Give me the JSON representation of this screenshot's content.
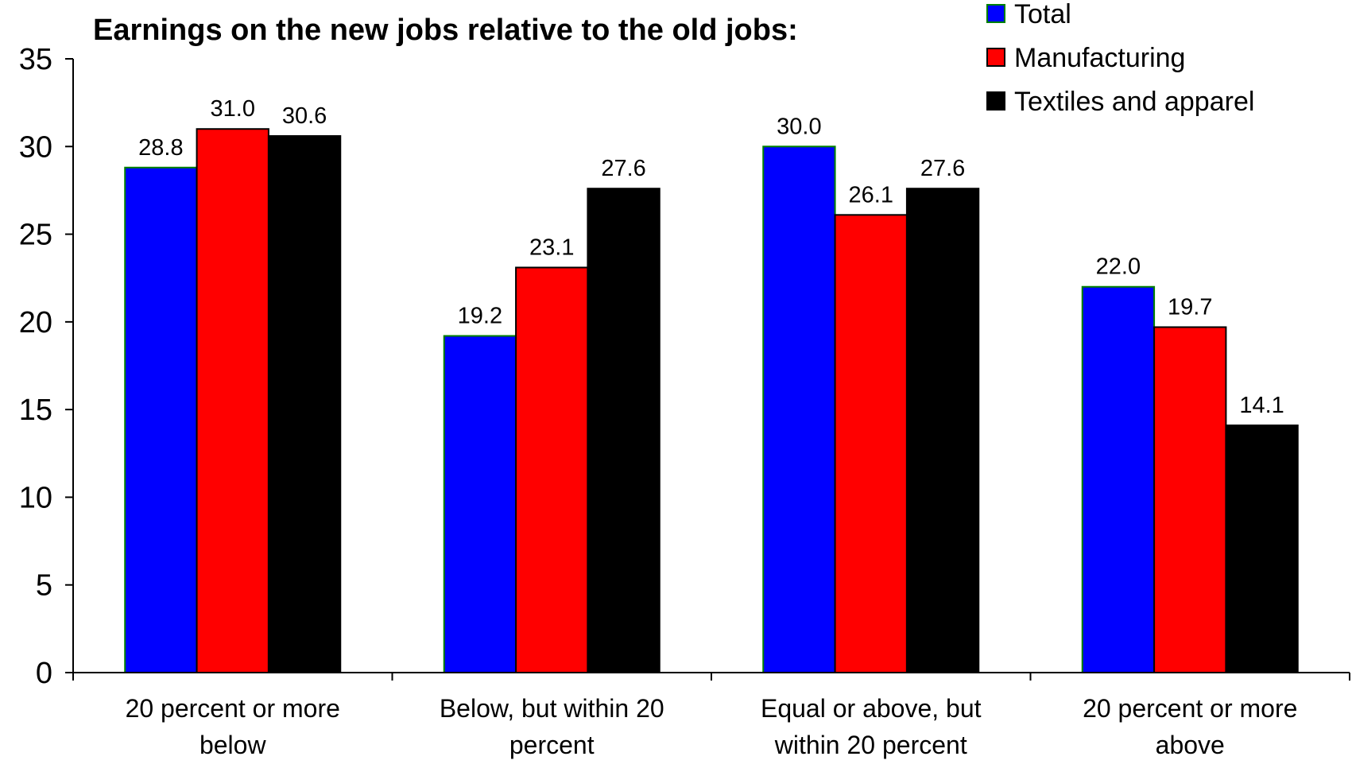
{
  "chart_data": {
    "type": "bar",
    "title": "Earnings on the new jobs relative to the old jobs:",
    "categories": [
      [
        "20 percent or more",
        "below"
      ],
      [
        "Below, but within 20",
        "percent"
      ],
      [
        "Equal or above, but",
        "within 20 percent"
      ],
      [
        "20 percent or more",
        "above"
      ]
    ],
    "series": [
      {
        "name": "Total",
        "color": "#0000ff",
        "values": [
          28.8,
          19.2,
          30.0,
          22.0
        ],
        "labels": [
          "28.8",
          "19.2",
          "30.0",
          "22.0"
        ]
      },
      {
        "name": "Manufacturing",
        "color": "#ff0000",
        "values": [
          31.0,
          23.1,
          26.1,
          19.7
        ],
        "labels": [
          "31.0",
          "23.1",
          "26.1",
          "19.7"
        ]
      },
      {
        "name": "Textiles and apparel",
        "color": "#000000",
        "values": [
          30.6,
          27.6,
          27.6,
          14.1
        ],
        "labels": [
          "30.6",
          "27.6",
          "27.6",
          "14.1"
        ]
      }
    ],
    "ylim": [
      0,
      35
    ],
    "yticks": [
      "0",
      "5",
      "10",
      "15",
      "20",
      "25",
      "30",
      "35"
    ],
    "grid": false,
    "legend_position": "top-right"
  }
}
